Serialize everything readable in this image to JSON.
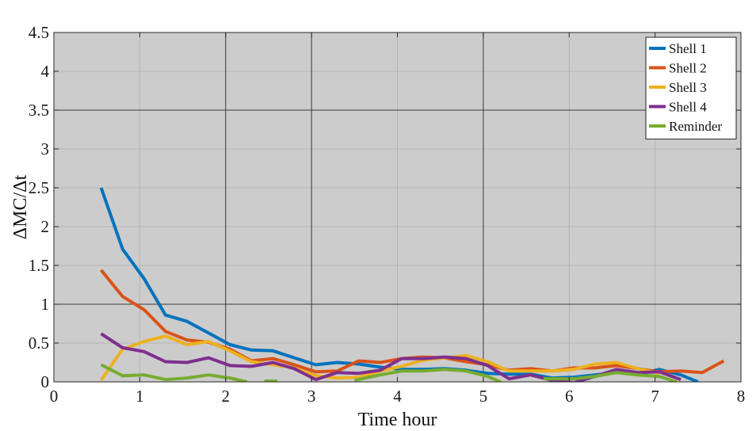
{
  "chart_data": {
    "type": "line",
    "xlabel": "Time hour",
    "ylabel": "ΔMC/Δt",
    "xlim": [
      0,
      8
    ],
    "ylim": [
      0,
      4.5
    ],
    "xticks": [
      0,
      1,
      2,
      3,
      4,
      5,
      6,
      7,
      8
    ],
    "yticks": [
      0,
      0.5,
      1,
      1.5,
      2,
      2.5,
      3,
      3.5,
      4,
      4.5
    ],
    "xtick_labels": [
      "0",
      "1",
      "2",
      "3",
      "4",
      "5",
      "6",
      "7",
      "8"
    ],
    "ytick_labels": [
      "0",
      "0.5",
      "1",
      "1.5",
      "2",
      "2.5",
      "3",
      "3.5",
      "4",
      "4.5"
    ],
    "grid": true,
    "major_grid_x": [
      2,
      3,
      5
    ],
    "major_grid_y": [
      1,
      3.5
    ],
    "background_color": "#cccccc",
    "legend_position": "top-right",
    "series": [
      {
        "name": "Shell 1",
        "color": "#0072BD",
        "points": [
          [
            0.55,
            2.5
          ],
          [
            0.8,
            1.71
          ],
          [
            1.05,
            1.33
          ],
          [
            1.3,
            0.86
          ],
          [
            1.55,
            0.78
          ],
          [
            1.8,
            0.63
          ],
          [
            2.05,
            0.48
          ],
          [
            2.3,
            0.41
          ],
          [
            2.55,
            0.4
          ],
          [
            2.8,
            0.31
          ],
          [
            3.05,
            0.22
          ],
          [
            3.3,
            0.25
          ],
          [
            3.55,
            0.23
          ],
          [
            3.8,
            0.19
          ],
          [
            4.05,
            0.16
          ],
          [
            4.3,
            0.16
          ],
          [
            4.55,
            0.17
          ],
          [
            4.8,
            0.15
          ],
          [
            5.05,
            0.11
          ],
          [
            5.3,
            0.1
          ],
          [
            5.55,
            0.1
          ],
          [
            5.8,
            0.05
          ],
          [
            6.05,
            0.06
          ],
          [
            6.3,
            0.09
          ],
          [
            6.55,
            0.12
          ],
          [
            6.8,
            0.1
          ],
          [
            7.05,
            0.16
          ],
          [
            7.3,
            0.09
          ],
          [
            7.5,
            0.0
          ]
        ]
      },
      {
        "name": "Shell 2",
        "color": "#D95319",
        "points": [
          [
            0.55,
            1.44
          ],
          [
            0.8,
            1.1
          ],
          [
            1.05,
            0.93
          ],
          [
            1.3,
            0.65
          ],
          [
            1.55,
            0.54
          ],
          [
            1.8,
            0.51
          ],
          [
            2.05,
            0.42
          ],
          [
            2.3,
            0.27
          ],
          [
            2.55,
            0.3
          ],
          [
            2.8,
            0.22
          ],
          [
            3.05,
            0.13
          ],
          [
            3.3,
            0.14
          ],
          [
            3.55,
            0.27
          ],
          [
            3.8,
            0.25
          ],
          [
            4.05,
            0.3
          ],
          [
            4.3,
            0.32
          ],
          [
            4.55,
            0.31
          ],
          [
            4.8,
            0.26
          ],
          [
            5.05,
            0.22
          ],
          [
            5.3,
            0.15
          ],
          [
            5.55,
            0.17
          ],
          [
            5.8,
            0.14
          ],
          [
            6.05,
            0.18
          ],
          [
            6.3,
            0.18
          ],
          [
            6.55,
            0.21
          ],
          [
            6.8,
            0.17
          ],
          [
            7.05,
            0.13
          ],
          [
            7.3,
            0.14
          ],
          [
            7.55,
            0.12
          ],
          [
            7.8,
            0.27
          ]
        ]
      },
      {
        "name": "Shell 3",
        "color": "#EDB120",
        "points": [
          [
            0.55,
            0.02
          ],
          [
            0.8,
            0.42
          ],
          [
            1.05,
            0.52
          ],
          [
            1.3,
            0.59
          ],
          [
            1.55,
            0.48
          ],
          [
            1.8,
            0.52
          ],
          [
            2.05,
            0.4
          ],
          [
            2.3,
            0.26
          ],
          [
            2.55,
            0.22
          ],
          [
            2.8,
            0.18
          ],
          [
            3.05,
            0.08
          ],
          [
            3.3,
            0.05
          ],
          [
            3.55,
            0.06
          ],
          [
            3.8,
            0.14
          ],
          [
            4.05,
            0.2
          ],
          [
            4.3,
            0.28
          ],
          [
            4.55,
            0.31
          ],
          [
            4.8,
            0.34
          ],
          [
            5.05,
            0.26
          ],
          [
            5.3,
            0.14
          ],
          [
            5.55,
            0.14
          ],
          [
            5.8,
            0.14
          ],
          [
            6.05,
            0.16
          ],
          [
            6.3,
            0.23
          ],
          [
            6.55,
            0.25
          ],
          [
            6.8,
            0.17
          ],
          [
            7.05,
            0.11
          ]
        ]
      },
      {
        "name": "Shell 4",
        "color": "#7E2F8E",
        "points": [
          [
            0.55,
            0.62
          ],
          [
            0.8,
            0.44
          ],
          [
            1.05,
            0.39
          ],
          [
            1.3,
            0.26
          ],
          [
            1.55,
            0.25
          ],
          [
            1.8,
            0.31
          ],
          [
            2.05,
            0.21
          ],
          [
            2.3,
            0.2
          ],
          [
            2.55,
            0.25
          ],
          [
            2.8,
            0.17
          ],
          [
            3.05,
            0.03
          ],
          [
            3.3,
            0.12
          ],
          [
            3.55,
            0.11
          ],
          [
            3.8,
            0.15
          ],
          [
            4.05,
            0.3
          ],
          [
            4.3,
            0.3
          ],
          [
            4.55,
            0.32
          ],
          [
            4.8,
            0.3
          ],
          [
            5.05,
            0.21
          ],
          [
            5.3,
            0.04
          ],
          [
            5.55,
            0.09
          ],
          [
            5.8,
            0.02
          ],
          [
            6.05,
            -0.01
          ],
          [
            6.3,
            0.07
          ],
          [
            6.55,
            0.16
          ],
          [
            6.8,
            0.12
          ],
          [
            7.05,
            0.13
          ],
          [
            7.3,
            0.03
          ]
        ]
      },
      {
        "name": "Reminder",
        "color": "#77AC30",
        "points": [
          [
            0.55,
            0.22
          ],
          [
            0.8,
            0.08
          ],
          [
            1.05,
            0.09
          ],
          [
            1.3,
            0.03
          ],
          [
            1.55,
            0.05
          ],
          [
            1.8,
            0.09
          ],
          [
            2.05,
            0.05
          ],
          [
            2.25,
            0.0
          ],
          null,
          [
            2.45,
            0.01
          ],
          [
            2.6,
            0.01
          ],
          null,
          [
            3.5,
            0.02
          ],
          [
            3.8,
            0.09
          ],
          [
            4.05,
            0.14
          ],
          [
            4.3,
            0.14
          ],
          [
            4.55,
            0.16
          ],
          [
            4.8,
            0.14
          ],
          [
            5.05,
            0.07
          ],
          [
            5.2,
            0.0
          ],
          null,
          [
            5.7,
            0.04
          ],
          [
            6.05,
            0.04
          ],
          [
            6.3,
            0.07
          ],
          [
            6.55,
            0.12
          ],
          [
            6.8,
            0.09
          ],
          [
            7.05,
            0.07
          ],
          [
            7.25,
            0.0
          ]
        ]
      }
    ]
  }
}
